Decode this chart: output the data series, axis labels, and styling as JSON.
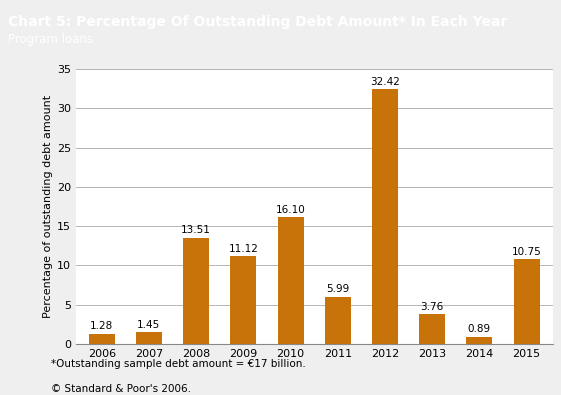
{
  "title": "Chart 5: Percentage Of Outstanding Debt Amount* In Each Year",
  "subtitle": "Program loans",
  "years": [
    "2006",
    "2007",
    "2008",
    "2009",
    "2010",
    "2011",
    "2012",
    "2013",
    "2014",
    "2015"
  ],
  "values": [
    1.28,
    1.45,
    13.51,
    11.12,
    16.1,
    5.99,
    32.42,
    3.76,
    0.89,
    10.75
  ],
  "bar_color": "#C8720A",
  "header_bg_color": "#2E5FA3",
  "header_text_color": "#FFFFFF",
  "chart_bg_color": "#FFFFFF",
  "outer_bg_color": "#EFEFEF",
  "border_color": "#2E5FA3",
  "grid_color": "#AAAAAA",
  "ylabel": "Percentage of outstanding debt amount",
  "ylim": [
    0,
    35
  ],
  "yticks": [
    0,
    5,
    10,
    15,
    20,
    25,
    30,
    35
  ],
  "footnote1": "*Outstanding sample debt amount = €17 billion.",
  "footnote2": "© Standard & Poor's 2006.",
  "title_fontsize": 10,
  "subtitle_fontsize": 8.5,
  "ylabel_fontsize": 8,
  "tick_fontsize": 8,
  "annotation_fontsize": 7.5,
  "footnote_fontsize": 7.5
}
